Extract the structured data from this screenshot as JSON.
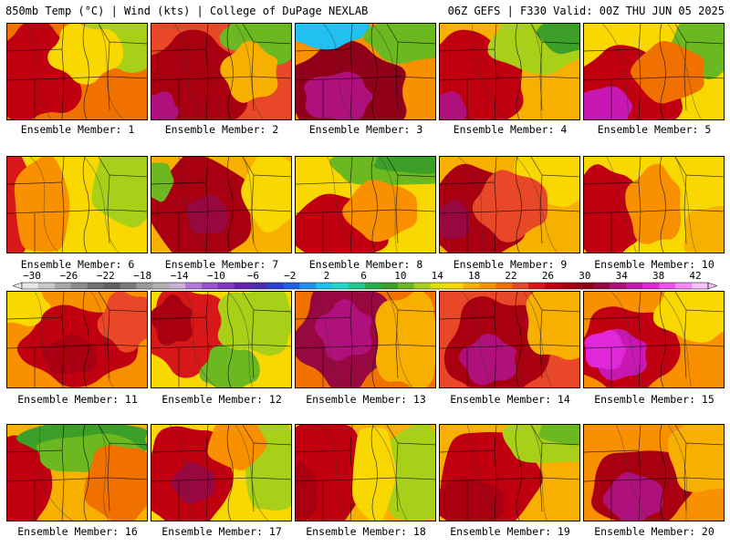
{
  "header": {
    "left": "850mb Temp (°C) | Wind (kts) | College of DuPage NEXLAB",
    "right": "06Z GEFS | F330 Valid: 00Z THU JUN 05 2025"
  },
  "colorbar": {
    "ticks": [
      "−30",
      "−26",
      "−22",
      "−18",
      "−14",
      "−10",
      "−6",
      "−2",
      "2",
      "6",
      "10",
      "14",
      "18",
      "22",
      "26",
      "30",
      "34",
      "38",
      "42"
    ],
    "colors": [
      "#e8e8e8",
      "#c8c8c8",
      "#a8a8a8",
      "#8c8c8c",
      "#707070",
      "#606060",
      "#7a7a7a",
      "#9a9a9a",
      "#b0b0b0",
      "#c8b0d8",
      "#b478dc",
      "#9a50d0",
      "#8236c4",
      "#6820b0",
      "#4a2cb8",
      "#2a40d0",
      "#1e60e8",
      "#2090f0",
      "#20c0f0",
      "#20d8c8",
      "#20c890",
      "#24b048",
      "#3ca028",
      "#6cb820",
      "#a8d018",
      "#e0e000",
      "#f8d800",
      "#f8b000",
      "#f89000",
      "#f07000",
      "#e84828",
      "#d81818",
      "#c00010",
      "#a80010",
      "#900018",
      "#980840",
      "#b0107c",
      "#c818b4",
      "#e028d8",
      "#f050f0",
      "#f888f8",
      "#f8c0f8"
    ]
  },
  "panels": [
    {
      "label": "Ensemble Member: 1"
    },
    {
      "label": "Ensemble Member: 2"
    },
    {
      "label": "Ensemble Member: 3"
    },
    {
      "label": "Ensemble Member: 4"
    },
    {
      "label": "Ensemble Member: 5"
    },
    {
      "label": "Ensemble Member: 6"
    },
    {
      "label": "Ensemble Member: 7"
    },
    {
      "label": "Ensemble Member: 8"
    },
    {
      "label": "Ensemble Member: 9"
    },
    {
      "label": "Ensemble Member: 10"
    },
    {
      "label": "Ensemble Member: 11"
    },
    {
      "label": "Ensemble Member: 12"
    },
    {
      "label": "Ensemble Member: 13"
    },
    {
      "label": "Ensemble Member: 14"
    },
    {
      "label": "Ensemble Member: 15"
    },
    {
      "label": "Ensemble Member: 16"
    },
    {
      "label": "Ensemble Member: 17"
    },
    {
      "label": "Ensemble Member: 18"
    },
    {
      "label": "Ensemble Member: 19"
    },
    {
      "label": "Ensemble Member: 20"
    }
  ]
}
